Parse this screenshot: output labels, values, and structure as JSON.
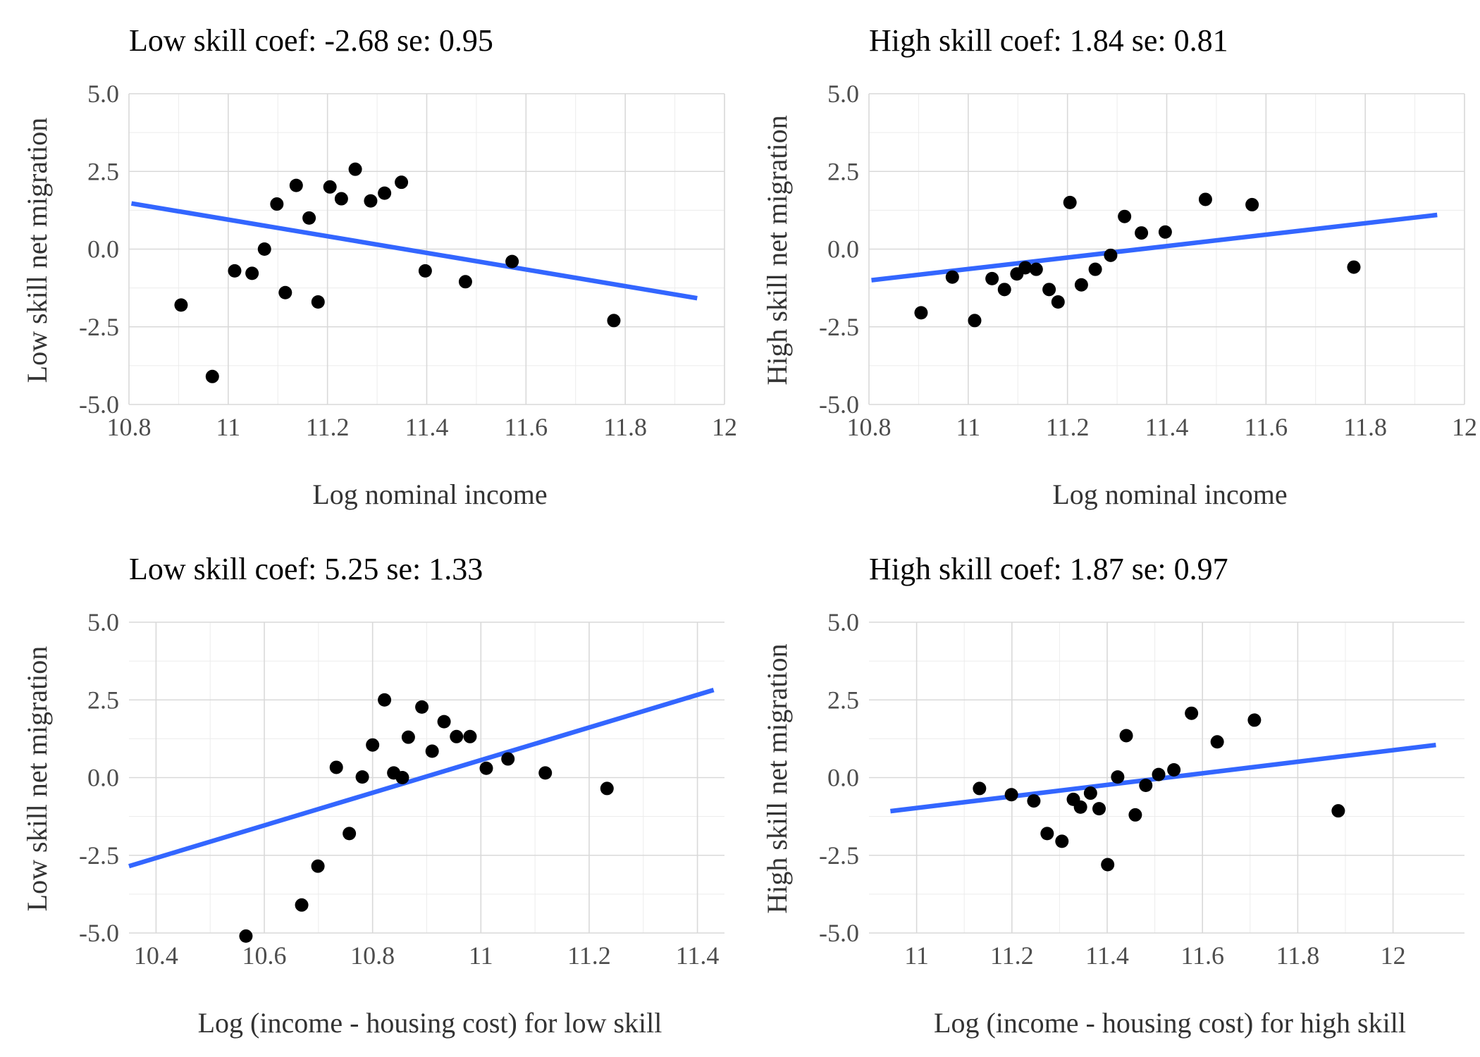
{
  "chart_data": [
    {
      "type": "scatter",
      "title": "Low skill coef: -2.68 se: 0.95",
      "xlabel": "Log nominal income",
      "ylabel": "Low skill net migration",
      "xlim": [
        10.8,
        12.0
      ],
      "ylim": [
        -5.0,
        5.0
      ],
      "xticks": [
        10.8,
        11.0,
        11.2,
        11.4,
        11.6,
        11.8,
        12.0
      ],
      "xtick_labels": [
        "10.8",
        "11",
        "11.2",
        "11.4",
        "11.6",
        "11.8",
        "12"
      ],
      "yticks": [
        5.0,
        2.5,
        0.0,
        -2.5,
        -5.0
      ],
      "ytick_labels": [
        "5.0",
        "2.5",
        "0.0",
        "-2.5",
        "-5.0"
      ],
      "grid": true,
      "points": [
        [
          10.905,
          -1.8
        ],
        [
          10.968,
          -4.1
        ],
        [
          11.013,
          -0.7
        ],
        [
          11.048,
          -0.78
        ],
        [
          11.073,
          0.0
        ],
        [
          11.098,
          1.45
        ],
        [
          11.115,
          -1.4
        ],
        [
          11.137,
          2.05
        ],
        [
          11.163,
          1.0
        ],
        [
          11.181,
          -1.7
        ],
        [
          11.205,
          2.0
        ],
        [
          11.228,
          1.62
        ],
        [
          11.256,
          2.57
        ],
        [
          11.287,
          1.55
        ],
        [
          11.315,
          1.8
        ],
        [
          11.349,
          2.15
        ],
        [
          11.397,
          -0.7
        ],
        [
          11.478,
          -1.05
        ],
        [
          11.572,
          -0.4
        ],
        [
          11.777,
          -2.3
        ]
      ],
      "fit_line": {
        "x": [
          10.805,
          11.945
        ],
        "y": [
          1.47,
          -1.58
        ],
        "color": "#3366FF"
      },
      "point_color": "#000000"
    },
    {
      "type": "scatter",
      "title": "High skill coef: 1.84 se: 0.81",
      "xlabel": "Log nominal income",
      "ylabel": "High skill net migration",
      "xlim": [
        10.8,
        12.0
      ],
      "ylim": [
        -5.0,
        5.0
      ],
      "xticks": [
        10.8,
        11.0,
        11.2,
        11.4,
        11.6,
        11.8,
        12.0
      ],
      "xtick_labels": [
        "10.8",
        "11",
        "11.2",
        "11.4",
        "11.6",
        "11.8",
        "12"
      ],
      "yticks": [
        5.0,
        2.5,
        0.0,
        -2.5,
        -5.0
      ],
      "ytick_labels": [
        "5.0",
        "2.5",
        "0.0",
        "-2.5",
        "-5.0"
      ],
      "grid": true,
      "points": [
        [
          10.905,
          -2.05
        ],
        [
          10.968,
          -0.9
        ],
        [
          11.013,
          -2.3
        ],
        [
          11.048,
          -0.95
        ],
        [
          11.073,
          -1.3
        ],
        [
          11.098,
          -0.8
        ],
        [
          11.115,
          -0.6
        ],
        [
          11.137,
          -0.65
        ],
        [
          11.163,
          -1.3
        ],
        [
          11.181,
          -1.7
        ],
        [
          11.205,
          1.5
        ],
        [
          11.228,
          -1.15
        ],
        [
          11.256,
          -0.65
        ],
        [
          11.287,
          -0.2
        ],
        [
          11.315,
          1.05
        ],
        [
          11.349,
          0.52
        ],
        [
          11.397,
          0.55
        ],
        [
          11.478,
          1.6
        ],
        [
          11.572,
          1.43
        ],
        [
          11.777,
          -0.58
        ]
      ],
      "fit_line": {
        "x": [
          10.805,
          11.945
        ],
        "y": [
          -1.0,
          1.1
        ],
        "color": "#3366FF"
      },
      "point_color": "#000000"
    },
    {
      "type": "scatter",
      "title": "Low skill coef: 5.25 se: 1.33",
      "xlabel": "Log (income - housing cost) for low skill",
      "ylabel": "Low skill net migration",
      "xlim": [
        10.35,
        11.45
      ],
      "ylim": [
        -5.0,
        5.0
      ],
      "xticks": [
        10.4,
        10.6,
        10.8,
        11.0,
        11.2,
        11.4
      ],
      "xtick_labels": [
        "10.4",
        "10.6",
        "10.8",
        "11",
        "11.2",
        "11.4"
      ],
      "yticks": [
        5.0,
        2.5,
        0.0,
        -2.5,
        -5.0
      ],
      "ytick_labels": [
        "5.0",
        "2.5",
        "0.0",
        "-2.5",
        "-5.0"
      ],
      "grid": true,
      "points": [
        [
          10.566,
          -5.1
        ],
        [
          10.669,
          -4.1
        ],
        [
          10.699,
          -2.85
        ],
        [
          10.733,
          0.33
        ],
        [
          10.757,
          -1.8
        ],
        [
          10.781,
          0.02
        ],
        [
          10.8,
          1.05
        ],
        [
          10.822,
          2.5
        ],
        [
          10.839,
          0.15
        ],
        [
          10.855,
          0.0
        ],
        [
          10.866,
          1.3
        ],
        [
          10.891,
          2.27
        ],
        [
          10.91,
          0.85
        ],
        [
          10.932,
          1.8
        ],
        [
          10.955,
          1.32
        ],
        [
          10.98,
          1.32
        ],
        [
          11.01,
          0.3
        ],
        [
          11.05,
          0.6
        ],
        [
          11.119,
          0.15
        ],
        [
          11.233,
          -0.35
        ]
      ],
      "fit_line": {
        "x": [
          10.35,
          11.43
        ],
        "y": [
          -2.85,
          2.82
        ],
        "color": "#3366FF"
      },
      "point_color": "#000000"
    },
    {
      "type": "scatter",
      "title": "High skill coef: 1.87 se: 0.97",
      "xlabel": "Log (income - housing cost) for high skill",
      "ylabel": "High skill net migration",
      "xlim": [
        10.9,
        12.15
      ],
      "ylim": [
        -5.0,
        5.0
      ],
      "xticks": [
        11.0,
        11.2,
        11.4,
        11.6,
        11.8,
        12.0
      ],
      "xtick_labels": [
        "11",
        "11.2",
        "11.4",
        "11.6",
        "11.8",
        "12"
      ],
      "yticks": [
        5.0,
        2.5,
        0.0,
        -2.5,
        -5.0
      ],
      "ytick_labels": [
        "5.0",
        "2.5",
        "0.0",
        "-2.5",
        "-5.0"
      ],
      "grid": true,
      "points": [
        [
          11.132,
          -0.35
        ],
        [
          11.199,
          -0.55
        ],
        [
          11.246,
          -0.75
        ],
        [
          11.274,
          -1.8
        ],
        [
          11.305,
          -2.05
        ],
        [
          11.329,
          -0.7
        ],
        [
          11.344,
          -0.95
        ],
        [
          11.365,
          -0.5
        ],
        [
          11.383,
          -1.0
        ],
        [
          11.401,
          -2.8
        ],
        [
          11.422,
          0.02
        ],
        [
          11.44,
          1.35
        ],
        [
          11.459,
          -1.2
        ],
        [
          11.481,
          -0.25
        ],
        [
          11.508,
          0.1
        ],
        [
          11.54,
          0.25
        ],
        [
          11.577,
          2.07
        ],
        [
          11.631,
          1.15
        ],
        [
          11.709,
          1.85
        ],
        [
          11.885,
          -1.07
        ]
      ],
      "fit_line": {
        "x": [
          10.945,
          12.09
        ],
        "y": [
          -1.08,
          1.05
        ],
        "color": "#3366FF"
      },
      "point_color": "#000000"
    }
  ]
}
